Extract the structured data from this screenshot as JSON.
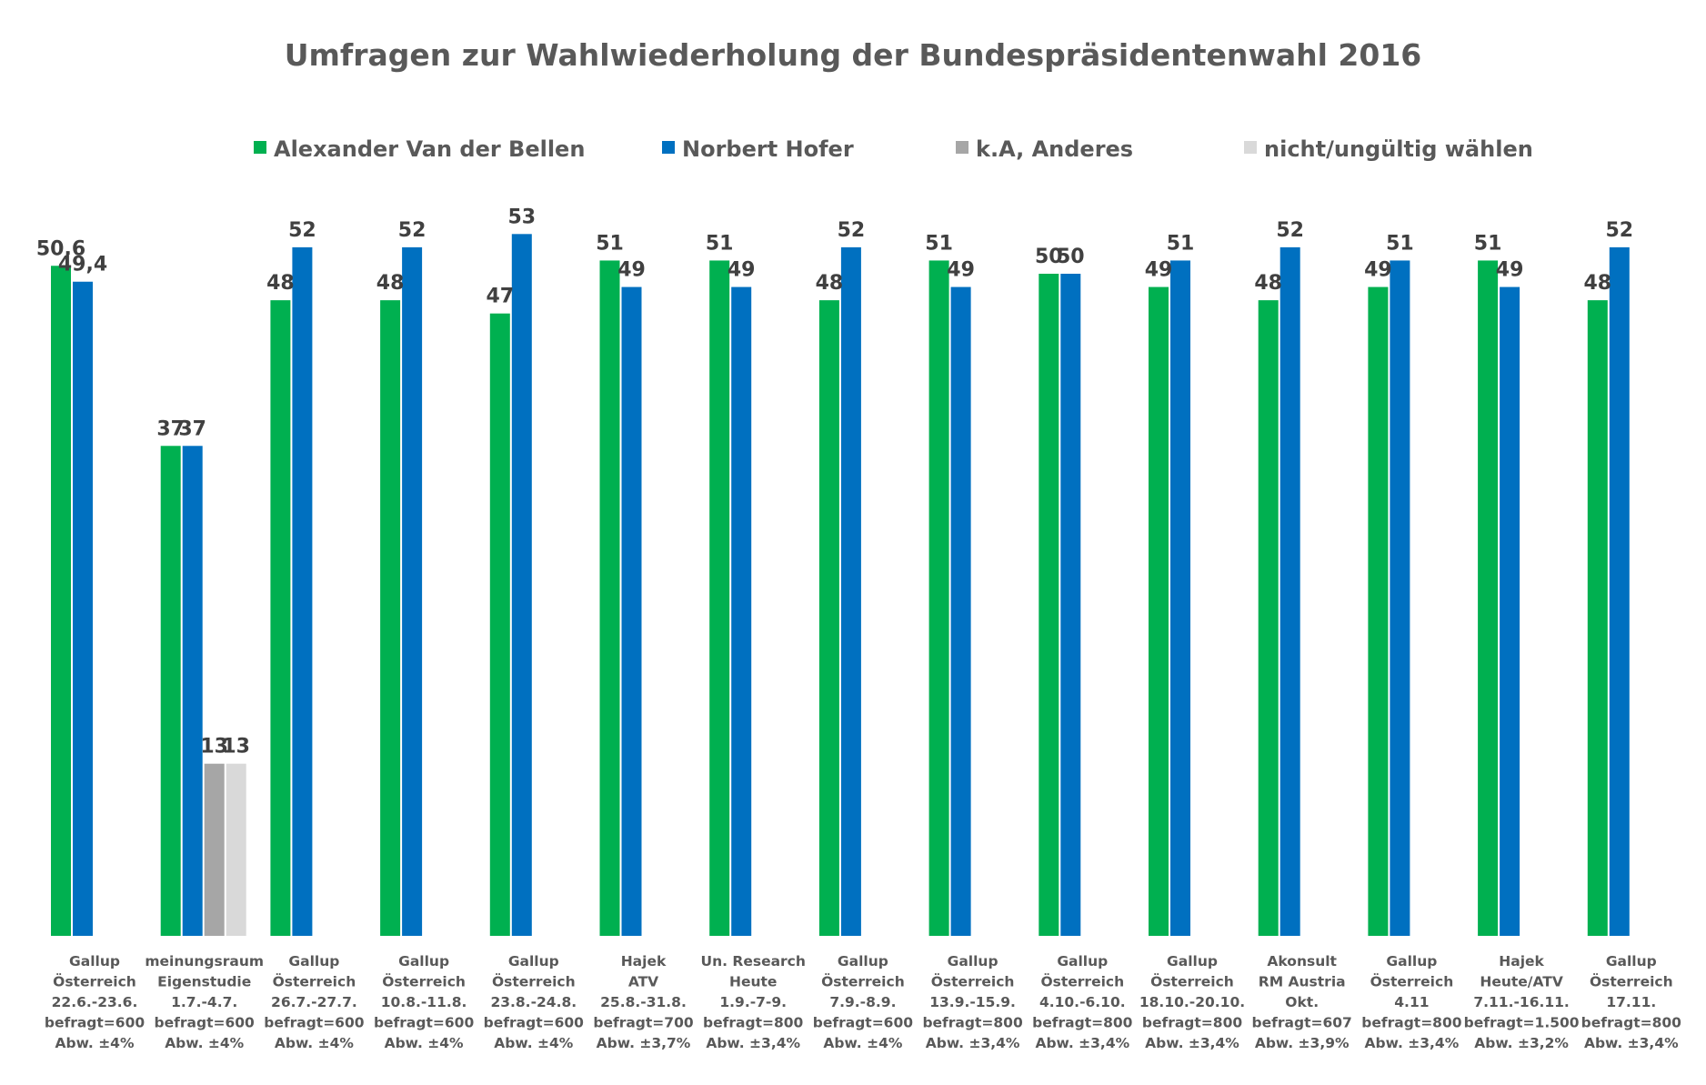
{
  "chart_data": {
    "type": "bar",
    "title": "Umfragen zur Wahlwiederholung der Bundespräsidentenwahl 2016",
    "legend_position": "top",
    "grid": false,
    "ylim": [
      0,
      55
    ],
    "series": [
      {
        "name": "Alexander Van der Bellen",
        "color": "#00B050",
        "values": [
          50.6,
          37,
          48,
          48,
          47,
          51,
          51,
          48,
          51,
          50,
          49,
          48,
          49,
          51,
          48
        ],
        "labels": [
          "50,6",
          "37",
          "48",
          "48",
          "47",
          "51",
          "51",
          "48",
          "51",
          "50",
          "49",
          "48",
          "49",
          "51",
          "48"
        ]
      },
      {
        "name": "Norbert Hofer",
        "color": "#0070C0",
        "values": [
          49.4,
          37,
          52,
          52,
          53,
          49,
          49,
          52,
          49,
          50,
          51,
          52,
          51,
          49,
          52
        ],
        "labels": [
          "49,4",
          "37",
          "52",
          "52",
          "53",
          "49",
          "49",
          "52",
          "49",
          "50",
          "51",
          "52",
          "51",
          "49",
          "52"
        ]
      },
      {
        "name": "k.A, Anderes",
        "color": "#A6A6A6",
        "values": [
          null,
          13,
          null,
          null,
          null,
          null,
          null,
          null,
          null,
          null,
          null,
          null,
          null,
          null,
          null
        ],
        "labels": [
          null,
          "13",
          null,
          null,
          null,
          null,
          null,
          null,
          null,
          null,
          null,
          null,
          null,
          null,
          null
        ]
      },
      {
        "name": "nicht/ungültig wählen",
        "color": "#D9D9D9",
        "values": [
          null,
          13,
          null,
          null,
          null,
          null,
          null,
          null,
          null,
          null,
          null,
          null,
          null,
          null,
          null
        ],
        "labels": [
          null,
          "13",
          null,
          null,
          null,
          null,
          null,
          null,
          null,
          null,
          null,
          null,
          null,
          null,
          null
        ]
      }
    ],
    "categories": [
      [
        "Gallup",
        "Österreich",
        "22.6.-23.6.",
        "befragt=600",
        "Abw. ±4%"
      ],
      [
        "meinungsraum",
        "Eigenstudie",
        "1.7.-4.7.",
        "befragt=600",
        "Abw. ±4%"
      ],
      [
        "Gallup",
        "Österreich",
        "26.7.-27.7.",
        "befragt=600",
        "Abw. ±4%"
      ],
      [
        "Gallup",
        "Österreich",
        "10.8.-11.8.",
        "befragt=600",
        "Abw. ±4%"
      ],
      [
        "Gallup",
        "Österreich",
        "23.8.-24.8.",
        "befragt=600",
        "Abw. ±4%"
      ],
      [
        "Hajek",
        "ATV",
        "25.8.-31.8.",
        "befragt=700",
        "Abw. ±3,7%"
      ],
      [
        "Un. Research",
        "Heute",
        "1.9.-7-9.",
        "befragt=800",
        "Abw. ±3,4%"
      ],
      [
        "Gallup",
        "Österreich",
        "7.9.-8.9.",
        "befragt=600",
        "Abw. ±4%"
      ],
      [
        "Gallup",
        "Österreich",
        "13.9.-15.9.",
        "befragt=800",
        "Abw. ±3,4%"
      ],
      [
        "Gallup",
        "Österreich",
        "4.10.-6.10.",
        "befragt=800",
        "Abw. ±3,4%"
      ],
      [
        "Gallup",
        "Österreich",
        "18.10.-20.10.",
        "befragt=800",
        "Abw. ±3,4%"
      ],
      [
        "Akonsult",
        "RM Austria",
        "Okt.",
        "befragt=607",
        "Abw. ±3,9%"
      ],
      [
        "Gallup",
        "Österreich",
        "4.11",
        "befragt=800",
        "Abw. ±3,4%"
      ],
      [
        "Hajek",
        "Heute/ATV",
        "7.11.-16.11.",
        "befragt=1.500",
        "Abw. ±3,2%"
      ],
      [
        "Gallup",
        "Österreich",
        "17.11.",
        "befragt=800",
        "Abw. ±3,4%"
      ]
    ]
  }
}
